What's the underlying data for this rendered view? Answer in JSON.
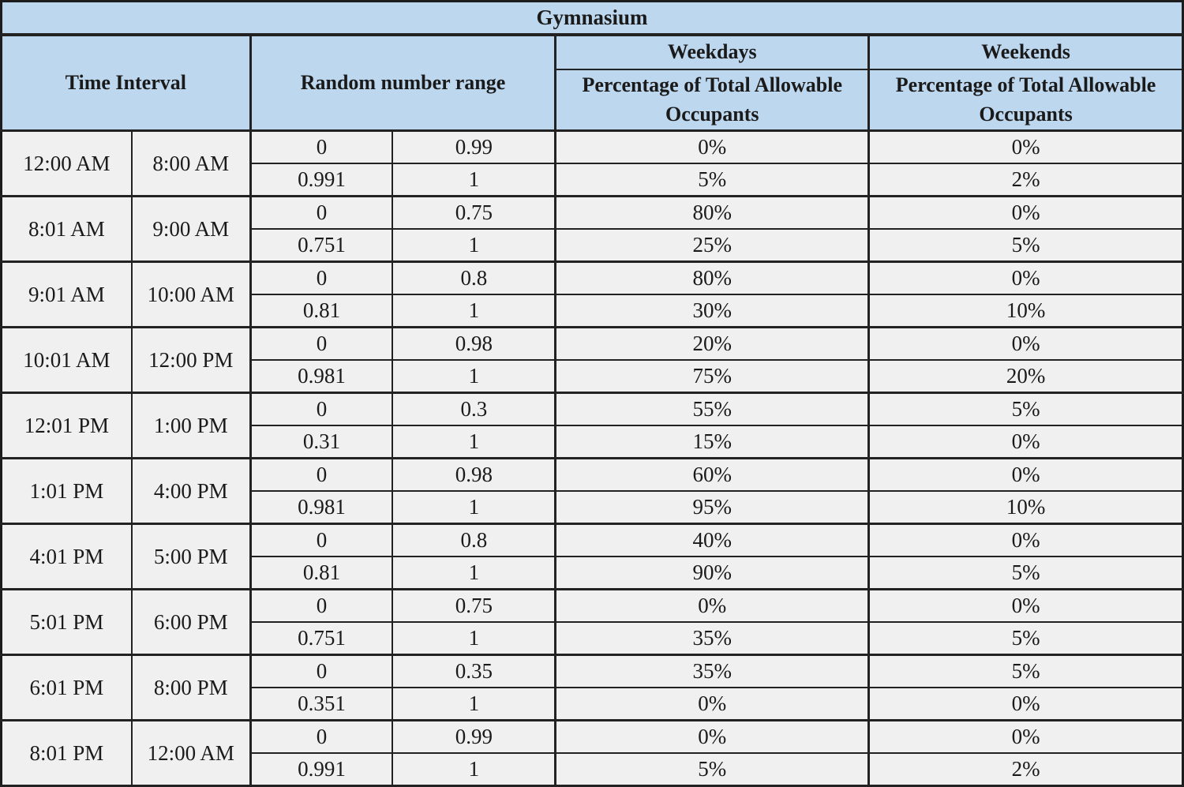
{
  "table": {
    "title": "Gymnasium",
    "headers": {
      "time_interval": "Time Interval",
      "random_range": "Random number range",
      "weekdays": "Weekdays",
      "weekends": "Weekends",
      "weekday_sub": "Percentage of Total Allowable Occupants",
      "weekend_sub": "Percentage of Total Allowable Occupants"
    }
  },
  "colors": {
    "header_background": "#bdd7ee",
    "cell_background": "#f0f0f0",
    "border": "#222222",
    "text": "#1a1a1a"
  },
  "chart_data": {
    "type": "table",
    "title": "Gymnasium",
    "columns": [
      "Time Interval (start)",
      "Time Interval (end)",
      "Random number range (low)",
      "Random number range (high)",
      "Weekdays Percentage of Total Allowable Occupants",
      "Weekends Percentage of Total Allowable Occupants"
    ],
    "groups": [
      {
        "start": "12:00 AM",
        "end": "8:00 AM",
        "rows": [
          [
            "0",
            "0.99",
            "0%",
            "0%"
          ],
          [
            "0.991",
            "1",
            "5%",
            "2%"
          ]
        ]
      },
      {
        "start": "8:01 AM",
        "end": "9:00 AM",
        "rows": [
          [
            "0",
            "0.75",
            "80%",
            "0%"
          ],
          [
            "0.751",
            "1",
            "25%",
            "5%"
          ]
        ]
      },
      {
        "start": "9:01 AM",
        "end": "10:00 AM",
        "rows": [
          [
            "0",
            "0.8",
            "80%",
            "0%"
          ],
          [
            "0.81",
            "1",
            "30%",
            "10%"
          ]
        ]
      },
      {
        "start": "10:01 AM",
        "end": "12:00 PM",
        "rows": [
          [
            "0",
            "0.98",
            "20%",
            "0%"
          ],
          [
            "0.981",
            "1",
            "75%",
            "20%"
          ]
        ]
      },
      {
        "start": "12:01 PM",
        "end": "1:00 PM",
        "rows": [
          [
            "0",
            "0.3",
            "55%",
            "5%"
          ],
          [
            "0.31",
            "1",
            "15%",
            "0%"
          ]
        ]
      },
      {
        "start": "1:01 PM",
        "end": "4:00 PM",
        "rows": [
          [
            "0",
            "0.98",
            "60%",
            "0%"
          ],
          [
            "0.981",
            "1",
            "95%",
            "10%"
          ]
        ]
      },
      {
        "start": "4:01 PM",
        "end": "5:00 PM",
        "rows": [
          [
            "0",
            "0.8",
            "40%",
            "0%"
          ],
          [
            "0.81",
            "1",
            "90%",
            "5%"
          ]
        ]
      },
      {
        "start": "5:01 PM",
        "end": "6:00 PM",
        "rows": [
          [
            "0",
            "0.75",
            "0%",
            "0%"
          ],
          [
            "0.751",
            "1",
            "35%",
            "5%"
          ]
        ]
      },
      {
        "start": "6:01 PM",
        "end": "8:00 PM",
        "rows": [
          [
            "0",
            "0.35",
            "35%",
            "5%"
          ],
          [
            "0.351",
            "1",
            "0%",
            "0%"
          ]
        ]
      },
      {
        "start": "8:01 PM",
        "end": "12:00 AM",
        "rows": [
          [
            "0",
            "0.99",
            "0%",
            "0%"
          ],
          [
            "0.991",
            "1",
            "5%",
            "2%"
          ]
        ]
      }
    ]
  }
}
